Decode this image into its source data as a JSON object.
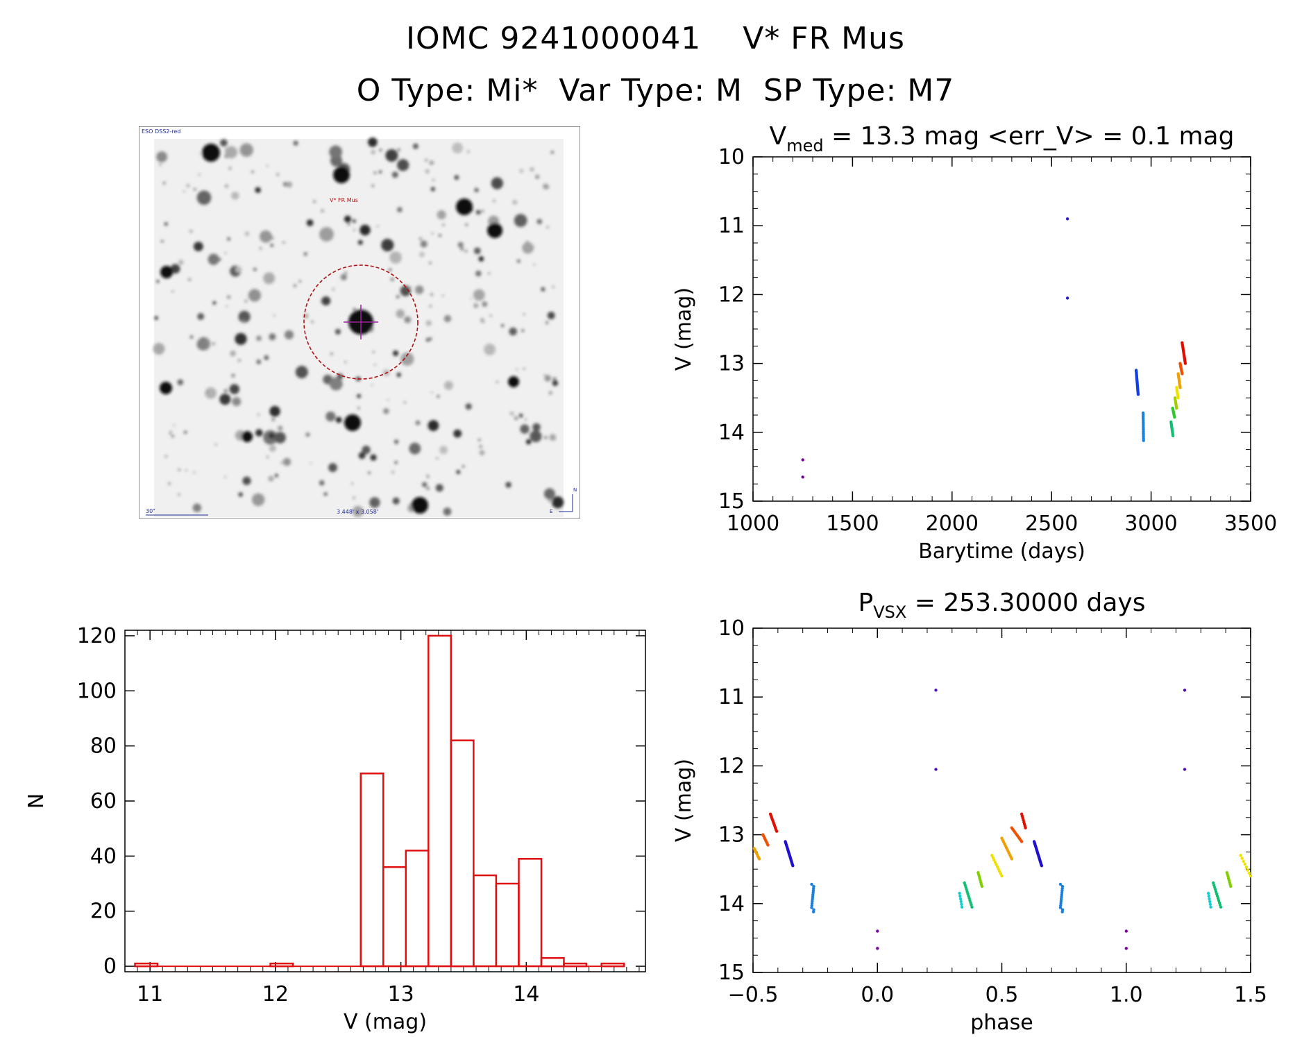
{
  "header": {
    "title_line1": "IOMC 9241000041    V* FR Mus",
    "title_line2": "O Type: Mi*  Var Type: M  SP Type: M7"
  },
  "sky_image": {
    "survey_label": "ESO DSS2-red",
    "target_label": "V* FR Mus",
    "scale_label": "30\"",
    "fov_label": "3.448' x 3.058'",
    "north_label": "N",
    "east_label": "E",
    "circle_color": "#b01010",
    "cross_color": "#a020a0"
  },
  "chart_data": [
    {
      "id": "light_curve",
      "type": "scatter",
      "title_main": "V",
      "title_sub": "med",
      "title_rest": " = 13.3 mag <err_V> = 0.1 mag",
      "xlabel": "Barytime (days)",
      "ylabel": "V (mag)",
      "xlim": [
        1000,
        3500
      ],
      "ylim": [
        10,
        15
      ],
      "y_inverted": true,
      "x_ticks": [
        1000,
        1500,
        2000,
        2500,
        3000,
        3500
      ],
      "y_ticks": [
        10,
        11,
        12,
        13,
        14,
        15
      ],
      "groups": [
        {
          "color": "#7a00a0",
          "x0": 1250,
          "x1": 1250,
          "y0": 14.4,
          "y1": 14.4,
          "n": 1
        },
        {
          "color": "#7a00a0",
          "x0": 1250,
          "x1": 1250,
          "y0": 14.65,
          "y1": 14.65,
          "n": 1
        },
        {
          "color": "#2a1ad0",
          "x0": 2580,
          "x1": 2580,
          "y0": 10.9,
          "y1": 10.9,
          "n": 1
        },
        {
          "color": "#2a1ad0",
          "x0": 2580,
          "x1": 2580,
          "y0": 12.05,
          "y1": 12.05,
          "n": 1
        },
        {
          "color": "#1040e0",
          "x0": 2925,
          "x1": 2935,
          "y0": 13.1,
          "y1": 13.45,
          "n": 22
        },
        {
          "color": "#1a80e0",
          "x0": 2960,
          "x1": 2962,
          "y0": 13.72,
          "y1": 14.12,
          "n": 16
        },
        {
          "color": "#10c070",
          "x0": 3100,
          "x1": 3110,
          "y0": 13.85,
          "y1": 14.05,
          "n": 10
        },
        {
          "color": "#30c830",
          "x0": 3108,
          "x1": 3118,
          "y0": 13.65,
          "y1": 13.78,
          "n": 8
        },
        {
          "color": "#a0d000",
          "x0": 3120,
          "x1": 3128,
          "y0": 13.5,
          "y1": 13.65,
          "n": 8
        },
        {
          "color": "#f0e000",
          "x0": 3128,
          "x1": 3136,
          "y0": 13.35,
          "y1": 13.5,
          "n": 8
        },
        {
          "color": "#f0a000",
          "x0": 3136,
          "x1": 3146,
          "y0": 13.15,
          "y1": 13.35,
          "n": 10
        },
        {
          "color": "#f05000",
          "x0": 3146,
          "x1": 3156,
          "y0": 13.0,
          "y1": 13.15,
          "n": 10
        },
        {
          "color": "#e01000",
          "x0": 3156,
          "x1": 3172,
          "y0": 12.7,
          "y1": 13.0,
          "n": 16
        }
      ]
    },
    {
      "id": "histogram",
      "type": "bar",
      "title": "",
      "xlabel": "V (mag)",
      "ylabel": "N",
      "xlim": [
        10.8,
        14.95
      ],
      "ylim": [
        -2,
        122
      ],
      "x_ticks": [
        11,
        12,
        13,
        14
      ],
      "y_ticks": [
        0,
        20,
        40,
        60,
        80,
        100,
        120
      ],
      "bin_width": 0.18,
      "bin_starts": [
        10.88,
        11.96,
        12.68,
        12.86,
        13.04,
        13.22,
        13.4,
        13.58,
        13.76,
        13.94,
        14.12,
        14.3,
        14.6
      ],
      "values": [
        1,
        1,
        70,
        36,
        42,
        120,
        82,
        33,
        30,
        39,
        3,
        1,
        1
      ],
      "color": "#e01010"
    },
    {
      "id": "phase_curve",
      "type": "scatter",
      "title_main": "P",
      "title_sub": "VSX",
      "title_rest": " = 253.30000 days",
      "xlabel": "phase",
      "ylabel": "V (mag)",
      "xlim": [
        -0.5,
        1.5
      ],
      "ylim": [
        10,
        15
      ],
      "y_inverted": true,
      "x_ticks": [
        -0.5,
        0.0,
        0.5,
        1.0,
        1.5
      ],
      "x_tick_labels": [
        "−0.5",
        "0.0",
        "0.5",
        "1.0",
        "1.5"
      ],
      "y_ticks": [
        10,
        11,
        12,
        13,
        14,
        15
      ],
      "groups": [
        {
          "color": "#f0a000",
          "x0": -0.495,
          "x1": -0.475,
          "y0": 13.2,
          "y1": 13.35,
          "n": 8
        },
        {
          "color": "#f05000",
          "x0": -0.46,
          "x1": -0.44,
          "y0": 13.0,
          "y1": 13.15,
          "n": 8
        },
        {
          "color": "#e01000",
          "x0": -0.43,
          "x1": -0.405,
          "y0": 12.7,
          "y1": 12.95,
          "n": 12
        },
        {
          "color": "#2010d0",
          "x0": -0.37,
          "x1": -0.34,
          "y0": 13.1,
          "y1": 13.45,
          "n": 22
        },
        {
          "color": "#1a80e0",
          "x0": -0.26,
          "x1": -0.26,
          "y0": 13.72,
          "y1": 14.12,
          "n": 14
        },
        {
          "color": "#7a00a0",
          "x0": 0.0,
          "x1": 0.0,
          "y0": 14.4,
          "y1": 14.4,
          "n": 1
        },
        {
          "color": "#7a00a0",
          "x0": 0.0,
          "x1": 0.0,
          "y0": 14.65,
          "y1": 14.65,
          "n": 1
        },
        {
          "color": "#5010c0",
          "x0": 0.235,
          "x1": 0.235,
          "y0": 10.9,
          "y1": 10.9,
          "n": 1
        },
        {
          "color": "#5010c0",
          "x0": 0.235,
          "x1": 0.235,
          "y0": 12.05,
          "y1": 12.05,
          "n": 1
        },
        {
          "color": "#10d0d0",
          "x0": 0.33,
          "x1": 0.34,
          "y0": 13.85,
          "y1": 14.05,
          "n": 6
        },
        {
          "color": "#10c070",
          "x0": 0.35,
          "x1": 0.38,
          "y0": 13.7,
          "y1": 14.05,
          "n": 12
        },
        {
          "color": "#80d000",
          "x0": 0.405,
          "x1": 0.42,
          "y0": 13.55,
          "y1": 13.75,
          "n": 8
        },
        {
          "color": "#f0e000",
          "x0": 0.46,
          "x1": 0.5,
          "y0": 13.3,
          "y1": 13.6,
          "n": 10
        },
        {
          "color": "#f0a000",
          "x0": 0.5,
          "x1": 0.54,
          "y0": 13.05,
          "y1": 13.35,
          "n": 12
        },
        {
          "color": "#f05000",
          "x0": 0.54,
          "x1": 0.58,
          "y0": 12.9,
          "y1": 13.1,
          "n": 10
        },
        {
          "color": "#e01000",
          "x0": 0.58,
          "x1": 0.595,
          "y0": 12.7,
          "y1": 12.9,
          "n": 8
        },
        {
          "color": "#2010d0",
          "x0": 0.63,
          "x1": 0.66,
          "y0": 13.1,
          "y1": 13.45,
          "n": 22
        },
        {
          "color": "#1a80e0",
          "x0": 0.74,
          "x1": 0.74,
          "y0": 13.72,
          "y1": 14.12,
          "n": 14
        },
        {
          "color": "#7a00a0",
          "x0": 1.0,
          "x1": 1.0,
          "y0": 14.4,
          "y1": 14.4,
          "n": 1
        },
        {
          "color": "#7a00a0",
          "x0": 1.0,
          "x1": 1.0,
          "y0": 14.65,
          "y1": 14.65,
          "n": 1
        },
        {
          "color": "#5010c0",
          "x0": 1.235,
          "x1": 1.235,
          "y0": 10.9,
          "y1": 10.9,
          "n": 1
        },
        {
          "color": "#5010c0",
          "x0": 1.235,
          "x1": 1.235,
          "y0": 12.05,
          "y1": 12.05,
          "n": 1
        },
        {
          "color": "#10d0d0",
          "x0": 1.33,
          "x1": 1.34,
          "y0": 13.85,
          "y1": 14.05,
          "n": 6
        },
        {
          "color": "#10c070",
          "x0": 1.35,
          "x1": 1.38,
          "y0": 13.7,
          "y1": 14.05,
          "n": 12
        },
        {
          "color": "#80d000",
          "x0": 1.405,
          "x1": 1.42,
          "y0": 13.55,
          "y1": 13.75,
          "n": 8
        },
        {
          "color": "#f0e000",
          "x0": 1.46,
          "x1": 1.5,
          "y0": 13.3,
          "y1": 13.6,
          "n": 8
        }
      ]
    }
  ]
}
